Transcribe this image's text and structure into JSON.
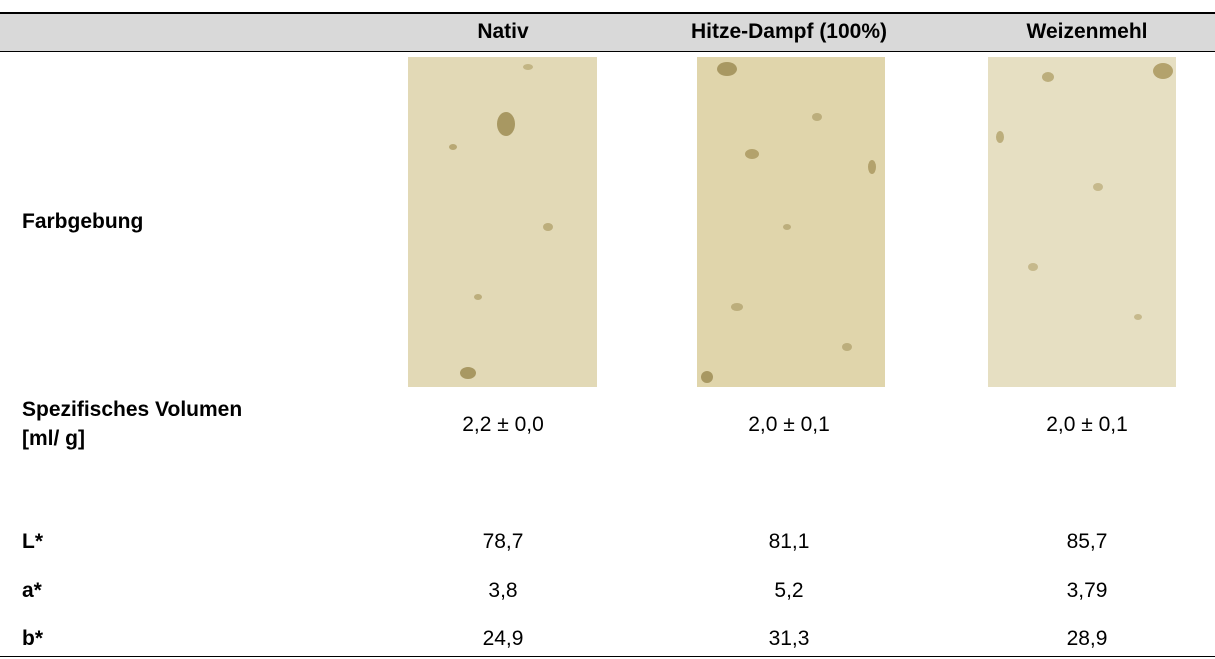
{
  "table": {
    "columns": [
      "Nativ",
      "Hitze-Dampf (100%)",
      "Weizenmehl"
    ],
    "rows": [
      {
        "label": [
          "Farbgebung"
        ]
      },
      {
        "label": [
          "Spezifisches Volumen",
          "[ml/ g]"
        ],
        "cells": [
          "2,2 ± 0,0",
          "2,0 ± 0,1",
          "2,0 ± 0,1"
        ]
      },
      {
        "label": [
          "L*"
        ],
        "cells": [
          "78,7",
          "81,1",
          "85,7"
        ]
      },
      {
        "label": [
          "a*"
        ],
        "cells": [
          "3,8",
          "5,2",
          "3,79"
        ]
      },
      {
        "label": [
          "b*"
        ],
        "cells": [
          "24,9",
          "31,3",
          "28,9"
        ]
      }
    ]
  }
}
